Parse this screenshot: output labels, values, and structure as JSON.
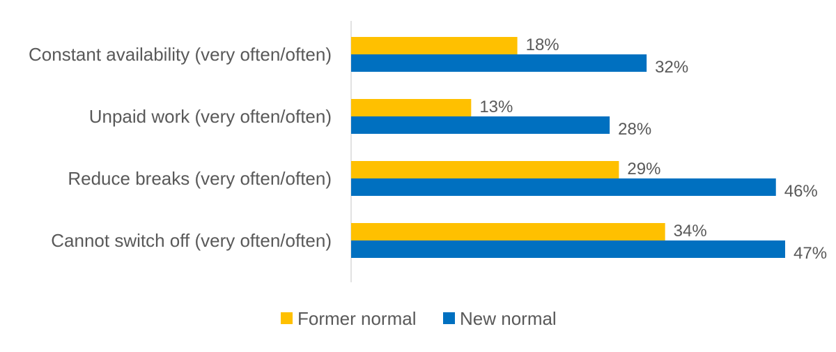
{
  "chart_data": {
    "type": "bar",
    "orientation": "horizontal",
    "title": "",
    "xlabel": "",
    "ylabel": "",
    "categories": [
      "Constant availability (very often/often)",
      "Unpaid work (very often/often)",
      "Reduce breaks (very often/often)",
      "Cannot switch off (very often/often)"
    ],
    "series": [
      {
        "name": "Former normal",
        "color": "#FFC000",
        "values": [
          18,
          13,
          29,
          34
        ]
      },
      {
        "name": "New normal",
        "color": "#0070C0",
        "values": [
          32,
          28,
          46,
          47
        ]
      }
    ],
    "value_suffix": "%",
    "xlim": [
      0,
      50
    ],
    "grid": false,
    "legend_position": "bottom"
  }
}
